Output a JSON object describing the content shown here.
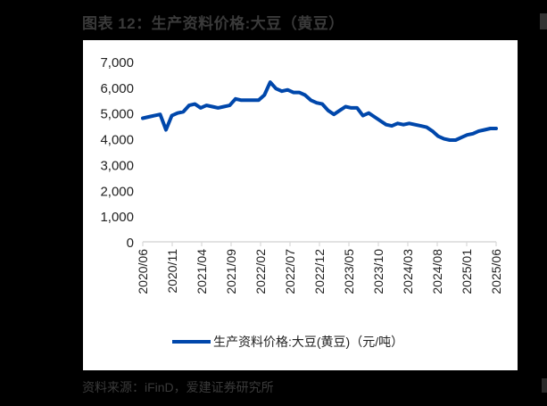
{
  "title": "图表 12：生产资料价格:大豆（黄豆）",
  "source": "资料来源：iFinD，爱建证券研究所",
  "colors": {
    "line": "#0047AB",
    "axis": "#D9D9D9",
    "text": "#222222"
  },
  "chart_data": {
    "type": "line",
    "title": "图表 12：生产资料价格:大豆（黄豆）",
    "xlabel": "",
    "ylabel": "",
    "ylim": [
      0,
      7000
    ],
    "yticks": [
      "0",
      "1,000",
      "2,000",
      "3,000",
      "4,000",
      "5,000",
      "6,000",
      "7,000"
    ],
    "xticks": [
      "2020/06",
      "2020/11",
      "2021/04",
      "2021/09",
      "2022/02",
      "2022/07",
      "2022/12",
      "2023/05",
      "2023/10",
      "2024/03",
      "2024/08",
      "2025/01",
      "2025/06"
    ],
    "grid": false,
    "legend_position": "bottom",
    "series": [
      {
        "name": "生产资料价格:大豆(黄豆)（元/吨）",
        "x": [
          "2020/06",
          "2020/07",
          "2020/08",
          "2020/09",
          "2020/10",
          "2020/11",
          "2020/12",
          "2021/01",
          "2021/02",
          "2021/03",
          "2021/04",
          "2021/05",
          "2021/06",
          "2021/07",
          "2021/08",
          "2021/09",
          "2021/10",
          "2021/11",
          "2021/12",
          "2022/01",
          "2022/02",
          "2022/03",
          "2022/04",
          "2022/05",
          "2022/06",
          "2022/07",
          "2022/08",
          "2022/09",
          "2022/10",
          "2022/11",
          "2022/12",
          "2023/01",
          "2023/02",
          "2023/03",
          "2023/04",
          "2023/05",
          "2023/06",
          "2023/07",
          "2023/08",
          "2023/09",
          "2023/10",
          "2023/11",
          "2023/12",
          "2024/01",
          "2024/02",
          "2024/03",
          "2024/04",
          "2024/05",
          "2024/06",
          "2024/07",
          "2024/08",
          "2024/09",
          "2024/10",
          "2024/11",
          "2024/12",
          "2025/01",
          "2025/02",
          "2025/03",
          "2025/04",
          "2025/05",
          "2025/06",
          "2025/07"
        ],
        "values": [
          4800,
          4850,
          4900,
          4950,
          4350,
          4900,
          5000,
          5050,
          5300,
          5350,
          5200,
          5300,
          5250,
          5200,
          5250,
          5300,
          5550,
          5500,
          5500,
          5500,
          5500,
          5700,
          6200,
          5950,
          5850,
          5900,
          5800,
          5800,
          5700,
          5500,
          5400,
          5350,
          5100,
          4950,
          5100,
          5250,
          5200,
          5200,
          4900,
          5000,
          4850,
          4700,
          4550,
          4500,
          4600,
          4550,
          4600,
          4550,
          4500,
          4450,
          4300,
          4100,
          4000,
          3950,
          3950,
          4050,
          4150,
          4200,
          4300,
          4350,
          4400,
          4400
        ]
      }
    ]
  },
  "legend": {
    "label": "生产资料价格:大豆(黄豆)（元/吨）"
  }
}
